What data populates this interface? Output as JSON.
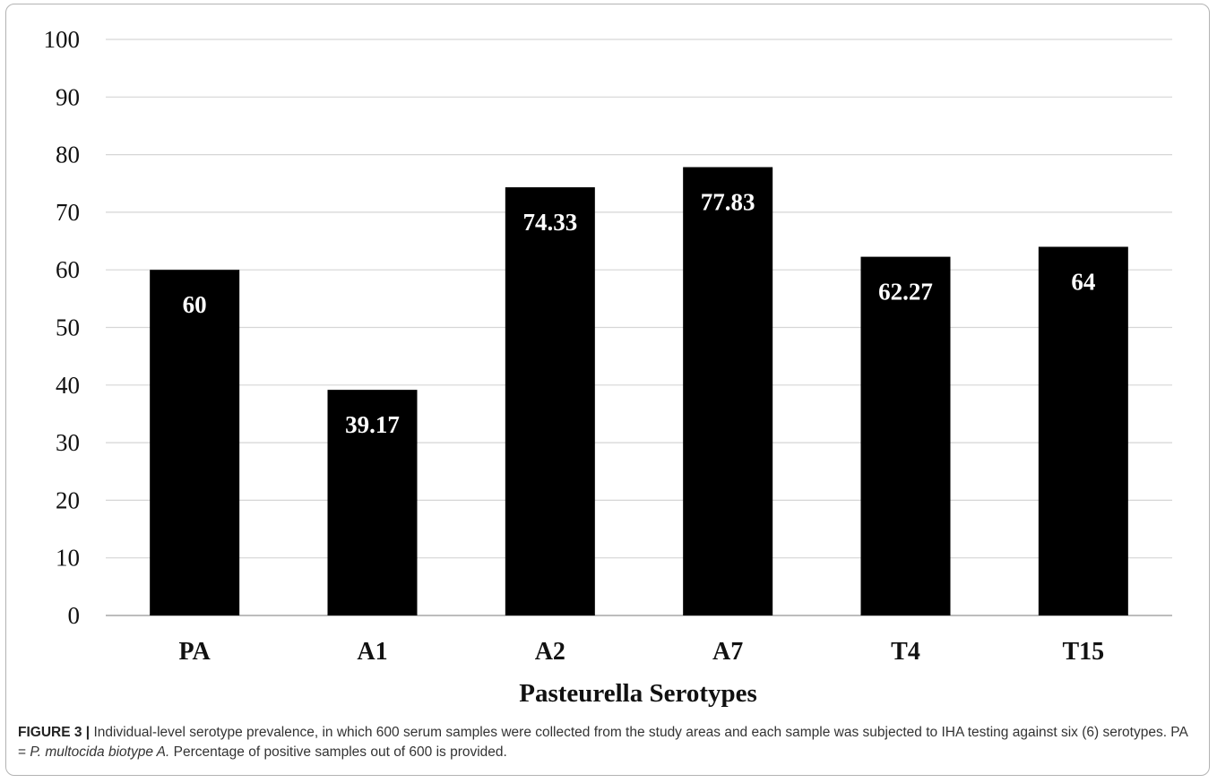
{
  "chart_data": {
    "type": "bar",
    "categories": [
      "PA",
      "A1",
      "A2",
      "A7",
      "T4",
      "T15"
    ],
    "values": [
      60,
      39.17,
      74.33,
      77.83,
      62.27,
      64
    ],
    "data_labels": [
      "60",
      "39.17",
      "74.33",
      "77.83",
      "62.27",
      "64"
    ],
    "xlabel": "Pasteurella Serotypes",
    "ylabel": "",
    "ylim": [
      0,
      100
    ],
    "yticks": [
      "0",
      "10",
      "20",
      "30",
      "40",
      "50",
      "60",
      "70",
      "80",
      "90",
      "100"
    ],
    "grid": true,
    "bar_color": "#000000",
    "label_color": "#ffffff"
  },
  "caption": {
    "label": "FIGURE 3 |",
    "text_1": " Individual-level serotype prevalence, in which 600 serum samples were collected from the study areas and each sample was subjected to IHA testing against six (6) serotypes. PA = ",
    "italic": "P. multocida biotype A.",
    "text_2": " Percentage of positive samples out of 600 is provided."
  }
}
